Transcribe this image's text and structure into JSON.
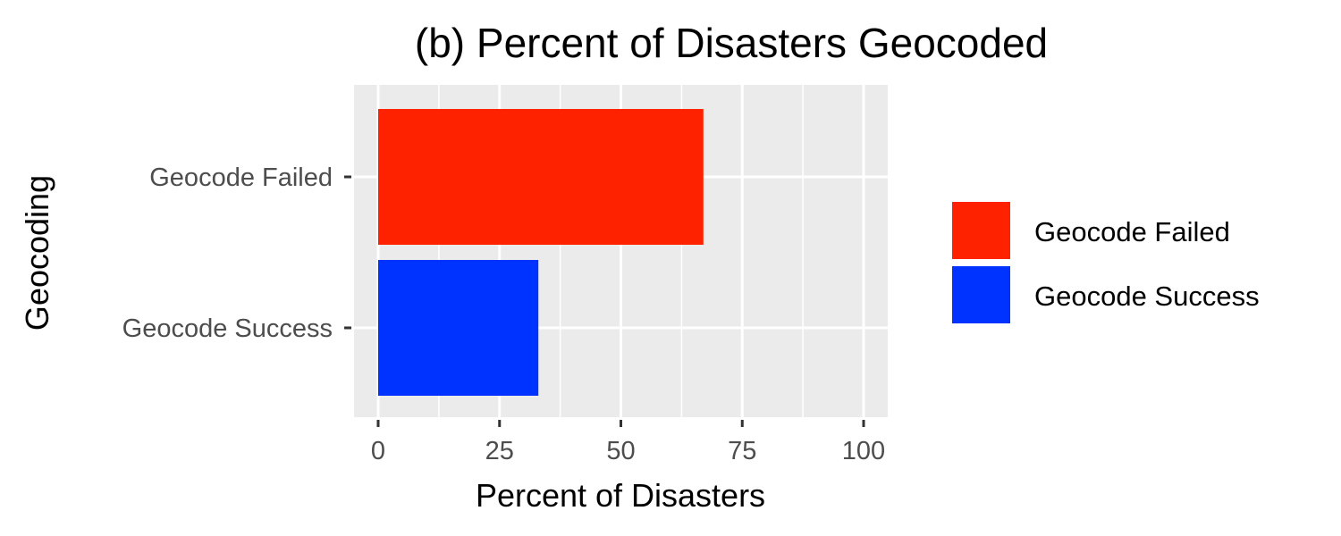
{
  "chart_data": {
    "type": "bar",
    "orientation": "horizontal",
    "title": "(b) Percent of Disasters Geocoded",
    "xlabel": "Percent of Disasters",
    "ylabel": "Geocoding",
    "categories": [
      "Geocode Failed",
      "Geocode Success"
    ],
    "values": [
      67,
      33
    ],
    "colors": [
      "#ff2200",
      "#0033ff"
    ],
    "xlim": [
      0,
      100
    ],
    "xticks": [
      "0",
      "25",
      "50",
      "75",
      "100"
    ],
    "grid": true,
    "panel_background": "#ebebeb",
    "legend": {
      "placement": "right",
      "entries": [
        "Geocode Failed",
        "Geocode Success"
      ]
    }
  }
}
